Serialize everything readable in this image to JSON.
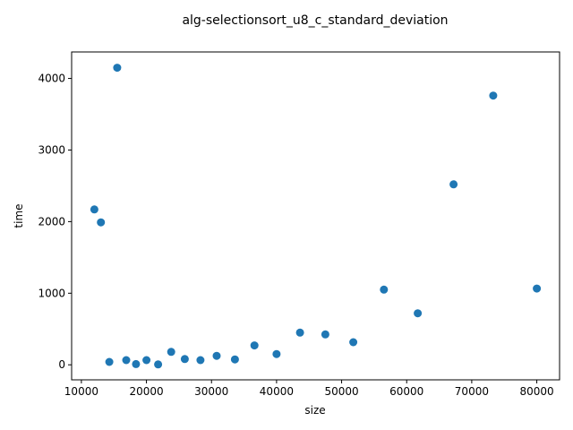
{
  "chart_data": {
    "type": "scatter",
    "title": "alg-selectionsort_u8_c_standard_deviation",
    "xlabel": "size",
    "ylabel": "time",
    "xlim": [
      8500,
      83500
    ],
    "ylim": [
      -210,
      4370
    ],
    "xticks": [
      10000,
      20000,
      30000,
      40000,
      50000,
      60000,
      70000,
      80000
    ],
    "yticks": [
      0,
      1000,
      2000,
      3000,
      4000
    ],
    "grid": false,
    "legend": "none",
    "marker_color": "#1f77b4",
    "points": [
      {
        "x": 12000,
        "y": 2170
      },
      {
        "x": 13000,
        "y": 1990
      },
      {
        "x": 14300,
        "y": 40
      },
      {
        "x": 15500,
        "y": 4150
      },
      {
        "x": 16900,
        "y": 65
      },
      {
        "x": 18400,
        "y": 10
      },
      {
        "x": 20000,
        "y": 65
      },
      {
        "x": 21800,
        "y": 5
      },
      {
        "x": 23800,
        "y": 180
      },
      {
        "x": 25900,
        "y": 80
      },
      {
        "x": 28300,
        "y": 65
      },
      {
        "x": 30800,
        "y": 125
      },
      {
        "x": 33600,
        "y": 75
      },
      {
        "x": 36600,
        "y": 270
      },
      {
        "x": 40000,
        "y": 150
      },
      {
        "x": 43600,
        "y": 450
      },
      {
        "x": 47500,
        "y": 425
      },
      {
        "x": 51800,
        "y": 315
      },
      {
        "x": 56500,
        "y": 1050
      },
      {
        "x": 61700,
        "y": 720
      },
      {
        "x": 67200,
        "y": 2520
      },
      {
        "x": 73300,
        "y": 3760
      },
      {
        "x": 80000,
        "y": 1065
      }
    ]
  }
}
